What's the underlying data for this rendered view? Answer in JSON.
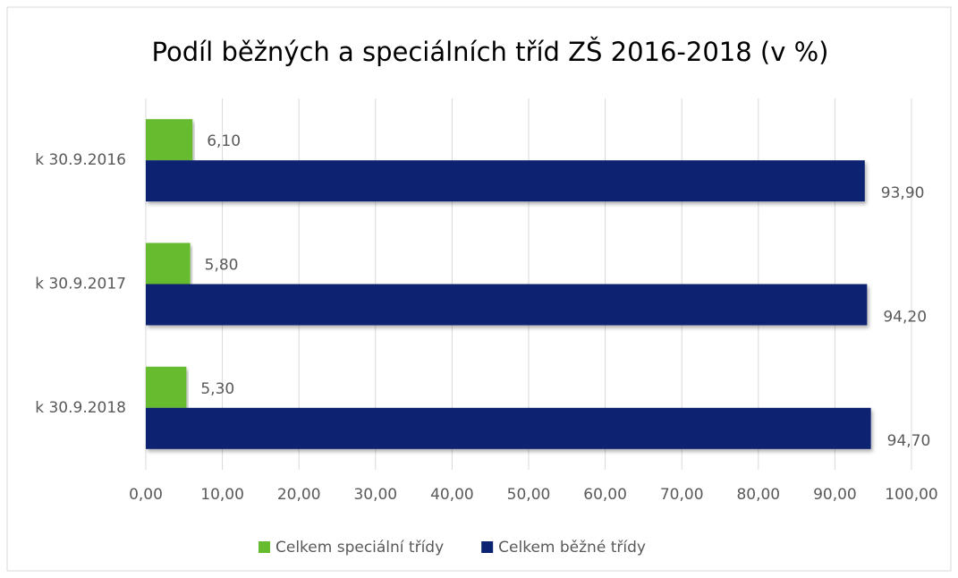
{
  "chart_data": {
    "type": "bar",
    "orientation": "horizontal",
    "title": "Podíl běžných a speciálních tříd ZŠ 2016-2018 (v %)",
    "categories": [
      "k 30.9.2016",
      "k 30.9.2017",
      "k 30.9.2018"
    ],
    "series": [
      {
        "name": "Celkem speciální třídy",
        "color": "#66bb2e",
        "values": [
          6.1,
          5.8,
          5.3
        ],
        "value_labels": [
          "6,10",
          "5,80",
          "5,30"
        ]
      },
      {
        "name": "Celkem běžné třídy",
        "color": "#0b2370",
        "values": [
          93.9,
          94.2,
          94.7
        ],
        "value_labels": [
          "93,90",
          "94,20",
          "94,70"
        ]
      }
    ],
    "xlim": [
      0,
      100
    ],
    "xticks": [
      {
        "value": 0,
        "label": "0,00"
      },
      {
        "value": 10,
        "label": "10,00"
      },
      {
        "value": 20,
        "label": "20,00"
      },
      {
        "value": 30,
        "label": "30,00"
      },
      {
        "value": 40,
        "label": "40,00"
      },
      {
        "value": 50,
        "label": "50,00"
      },
      {
        "value": 60,
        "label": "60,00"
      },
      {
        "value": 70,
        "label": "70,00"
      },
      {
        "value": 80,
        "label": "80,00"
      },
      {
        "value": 90,
        "label": "90,00"
      },
      {
        "value": 100,
        "label": "100,00"
      }
    ],
    "grid": true,
    "legend": "bottom"
  }
}
